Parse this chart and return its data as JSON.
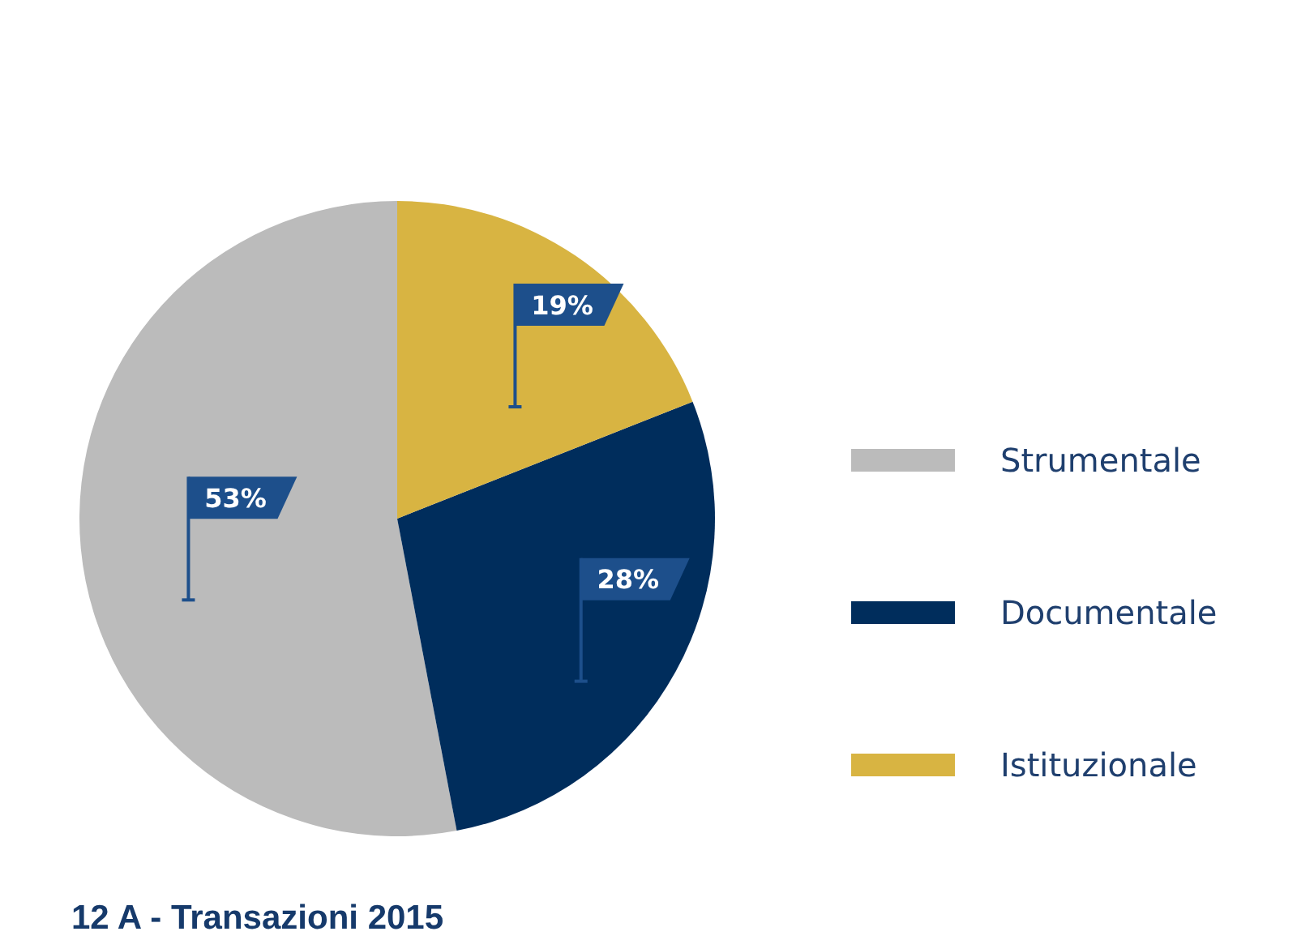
{
  "chart_data": {
    "type": "pie",
    "title": "12 A - Transazioni 2015",
    "categories": [
      "Strumentale",
      "Documentale",
      "Istituzionale"
    ],
    "values": [
      53,
      28,
      19
    ],
    "value_labels": [
      "53%",
      "28%",
      "19%"
    ],
    "colors": [
      "#bbbbbb",
      "#002d5c",
      "#d8b442"
    ],
    "legend": "right"
  }
}
